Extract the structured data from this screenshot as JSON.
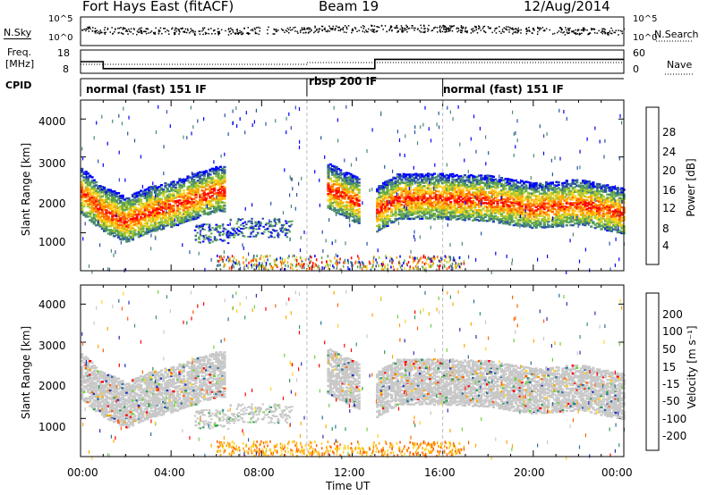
{
  "header": {
    "station": "Fort Hays East (fitACF)",
    "beam": "Beam 19",
    "date": "12/Aug/2014"
  },
  "noise_panel": {
    "left_label": "N.Sky",
    "right_label": "N.Search",
    "left_ticks": [
      "10^5",
      "10^0"
    ],
    "right_ticks": [
      "10^5",
      "10^0"
    ]
  },
  "freq_panel": {
    "left_label_line1": "Freq.",
    "left_label_line2": "[MHz]",
    "right_label": "Nave",
    "left_ticks": [
      "18",
      "8"
    ],
    "right_ticks": [
      "60",
      "0"
    ]
  },
  "cpid_panel": {
    "label": "CPID",
    "modes": [
      {
        "name": "normal (fast) 151 IF",
        "start_hour": 0
      },
      {
        "name": "rbsp 200 IF",
        "start_hour": 10
      },
      {
        "name": "normal (fast) 151 IF",
        "start_hour": 16
      }
    ]
  },
  "power_panel": {
    "ylabel": "Slant Range [km]",
    "yticks": [
      "1000",
      "2000",
      "3000",
      "4000"
    ],
    "colorbar_label": "Power [dB]",
    "colorbar_ticks": [
      "4",
      "8",
      "12",
      "16",
      "20",
      "24",
      "28"
    ],
    "colors": [
      "#0000ff",
      "#2a4fa8",
      "#4a8a72",
      "#5fa84b",
      "#a8c832",
      "#ffd21e",
      "#ffa500",
      "#ff6000",
      "#ff0000"
    ]
  },
  "velocity_panel": {
    "ylabel": "Slant Range [km]",
    "yticks": [
      "1000",
      "2000",
      "3000",
      "4000"
    ],
    "colorbar_label": "Velocity [m s⁻¹]",
    "colorbar_ticks": [
      "200",
      "100",
      "50",
      "15",
      "-15",
      "-50",
      "-100",
      "-200"
    ],
    "colors": [
      "#2632b4",
      "#266e9e",
      "#2e9a58",
      "#6ed23a",
      "#c8c8c8",
      "#ffd21e",
      "#ffa500",
      "#ff6000",
      "#ff0000"
    ],
    "ground_scatter_color": "#c8c8c8"
  },
  "time_axis": {
    "xlabel": "Time UT",
    "ticks": [
      "00:00",
      "04:00",
      "08:00",
      "12:00",
      "16:00",
      "20:00",
      "00:00"
    ]
  },
  "chart_data": {
    "type": "heatmap",
    "title": "Fort Hays East (fitACF)  Beam 19  12/Aug/2014",
    "xlabel": "Time UT",
    "ylabel": "Slant Range [km]",
    "xlim_hours": [
      0,
      24
    ],
    "ylim_km": [
      0,
      4500
    ],
    "frequency_mhz": [
      {
        "from_hour": 0,
        "to_hour": 1,
        "value": 13
      },
      {
        "from_hour": 1,
        "to_hour": 13,
        "value": 10
      },
      {
        "from_hour": 13,
        "to_hour": 24,
        "value": 14
      }
    ],
    "echo_bands_center_km": [
      {
        "hour": 0.0,
        "km": 2200
      },
      {
        "hour": 1.0,
        "km": 1700
      },
      {
        "hour": 2.0,
        "km": 1450
      },
      {
        "hour": 3.0,
        "km": 1700
      },
      {
        "hour": 4.0,
        "km": 1850
      },
      {
        "hour": 5.0,
        "km": 2050
      },
      {
        "hour": 6.0,
        "km": 2250
      },
      {
        "hour": 11.0,
        "km": 2300
      },
      {
        "hour": 13.0,
        "km": 1700
      },
      {
        "hour": 14.0,
        "km": 2050
      },
      {
        "hour": 16.0,
        "km": 2050
      },
      {
        "hour": 18.0,
        "km": 2000
      },
      {
        "hour": 20.0,
        "km": 1800
      },
      {
        "hour": 22.0,
        "km": 1900
      },
      {
        "hour": 24.0,
        "km": 1650
      }
    ]
  }
}
